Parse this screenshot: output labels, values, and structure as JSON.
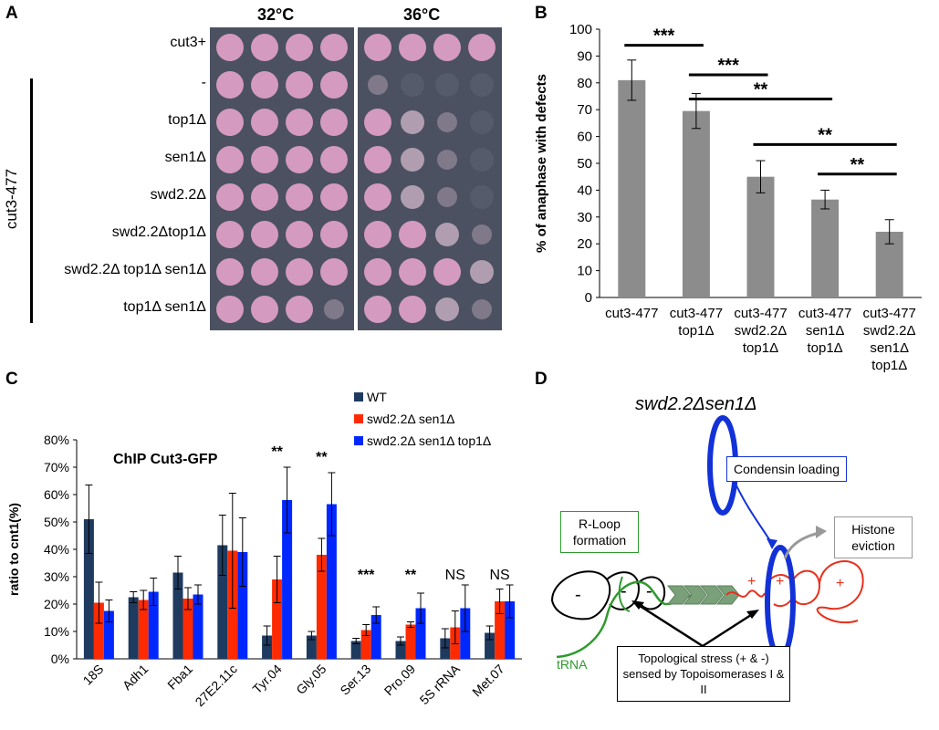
{
  "panels": {
    "a": "A",
    "b": "B",
    "c": "C",
    "d": "D"
  },
  "panel_a": {
    "temperatures": [
      "32°C",
      "36°C"
    ],
    "group_label": "cut3-477",
    "strains": [
      "cut3+",
      "-",
      "top1Δ",
      "sen1Δ",
      "swd2.2Δ",
      "swd2.2Δtop1Δ",
      "swd2.2Δ top1Δ sen1Δ",
      "top1Δ sen1Δ"
    ],
    "growth_32": [
      [
        4,
        4,
        4,
        4
      ],
      [
        4,
        4,
        4,
        4
      ],
      [
        4,
        4,
        4,
        4
      ],
      [
        4,
        4,
        4,
        4
      ],
      [
        4,
        4,
        4,
        3
      ],
      [
        4,
        4,
        4,
        3
      ],
      [
        4,
        4,
        4,
        4
      ],
      [
        4,
        4,
        3,
        1
      ]
    ],
    "growth_36": [
      [
        4,
        4,
        4,
        4
      ],
      [
        1,
        0,
        0,
        0
      ],
      [
        3,
        2,
        1,
        0
      ],
      [
        3,
        2,
        1,
        0
      ],
      [
        3,
        2,
        1,
        0
      ],
      [
        4,
        3,
        2,
        1
      ],
      [
        4,
        4,
        3,
        2
      ],
      [
        4,
        3,
        2,
        1
      ]
    ],
    "colors": {
      "plate": "#4b5160",
      "colony": "#d49ac0",
      "colony_light": "#e6c7db"
    }
  },
  "chart_b": {
    "type": "bar",
    "ylabel": "% of anaphase with defects",
    "ylim": [
      0,
      100
    ],
    "yticks": [
      0,
      10,
      20,
      30,
      40,
      50,
      60,
      70,
      80,
      90,
      100
    ],
    "categories": [
      [
        "cut3-477"
      ],
      [
        "cut3-477",
        "top1Δ"
      ],
      [
        "cut3-477",
        "swd2.2Δ",
        "top1Δ"
      ],
      [
        "cut3-477",
        "sen1Δ",
        "top1Δ"
      ],
      [
        "cut3-477",
        "swd2.2Δ",
        "sen1Δ",
        "top1Δ"
      ]
    ],
    "values": [
      81,
      69.5,
      45,
      36.5,
      24.5
    ],
    "errors": [
      7.5,
      6.5,
      6,
      3.5,
      4.5
    ],
    "bar_color": "#8c8c8c",
    "significance": [
      {
        "from": 0,
        "to": 1,
        "label": "***"
      },
      {
        "from": 1,
        "to": 2,
        "label": "***"
      },
      {
        "from": 1,
        "to": 3,
        "label": "**"
      },
      {
        "from": 2,
        "to": 4,
        "label": "**"
      },
      {
        "from": 3,
        "to": 4,
        "label": "**"
      }
    ]
  },
  "chart_c": {
    "type": "bar",
    "title": "ChIP Cut3-GFP",
    "ylabel": "ratio to cnt1(%)",
    "ylim": [
      0,
      80
    ],
    "yticks": [
      "0%",
      "10%",
      "20%",
      "30%",
      "40%",
      "50%",
      "60%",
      "70%",
      "80%"
    ],
    "categories": [
      "18S",
      "Adh1",
      "Fba1",
      "27E2.11c",
      "Tyr.04",
      "Gly.05",
      "Ser.13",
      "Pro.09",
      "5S rRNA",
      "Met.07"
    ],
    "series": [
      {
        "name": "WT",
        "color": "#1f3a5f",
        "values": [
          51,
          22.5,
          31.5,
          41.5,
          8.5,
          8.5,
          6.5,
          6.5,
          7.5,
          9.5
        ],
        "errors": [
          12.5,
          2,
          6,
          11,
          3.5,
          1.5,
          1,
          1.5,
          3.5,
          2.5
        ]
      },
      {
        "name": "swd2.2Δ sen1Δ",
        "color": "#ff2a00",
        "values": [
          20.5,
          21.5,
          22,
          39.5,
          29,
          38,
          10.5,
          12.5,
          11.5,
          21
        ],
        "errors": [
          7.5,
          3.5,
          4,
          21,
          8.5,
          6,
          2,
          1,
          6,
          4.5
        ]
      },
      {
        "name": "swd2.2Δ sen1Δ top1Δ",
        "color": "#0027ff",
        "values": [
          17.5,
          24.5,
          23.5,
          39,
          58,
          56.5,
          16,
          18.5,
          18.5,
          21
        ],
        "errors": [
          4,
          5,
          3.5,
          12.5,
          12,
          11.5,
          3,
          5.5,
          8.5,
          6
        ]
      }
    ],
    "significance": [
      "",
      "",
      "",
      "",
      "**",
      "**",
      "***",
      "**",
      "NS",
      "NS"
    ]
  },
  "panel_d": {
    "title": "swd2.2Δsen1Δ",
    "condensin_box": "Condensin loading",
    "rloop_box": "R-Loop formation",
    "histone_box": "Histone eviction",
    "trna_label": "tRNA",
    "topo_box": "Topological stress (+ & -) sensed by Topoisomerases I & II",
    "minus_sign": "-",
    "plus_sign": "+",
    "colors": {
      "condensin": "#1232d8",
      "rloop": "#2e9a2e",
      "dna_black": "#000000",
      "dna_red": "#e8301c",
      "arrow_grey": "#999999",
      "chevron": "#7aa07a"
    }
  }
}
